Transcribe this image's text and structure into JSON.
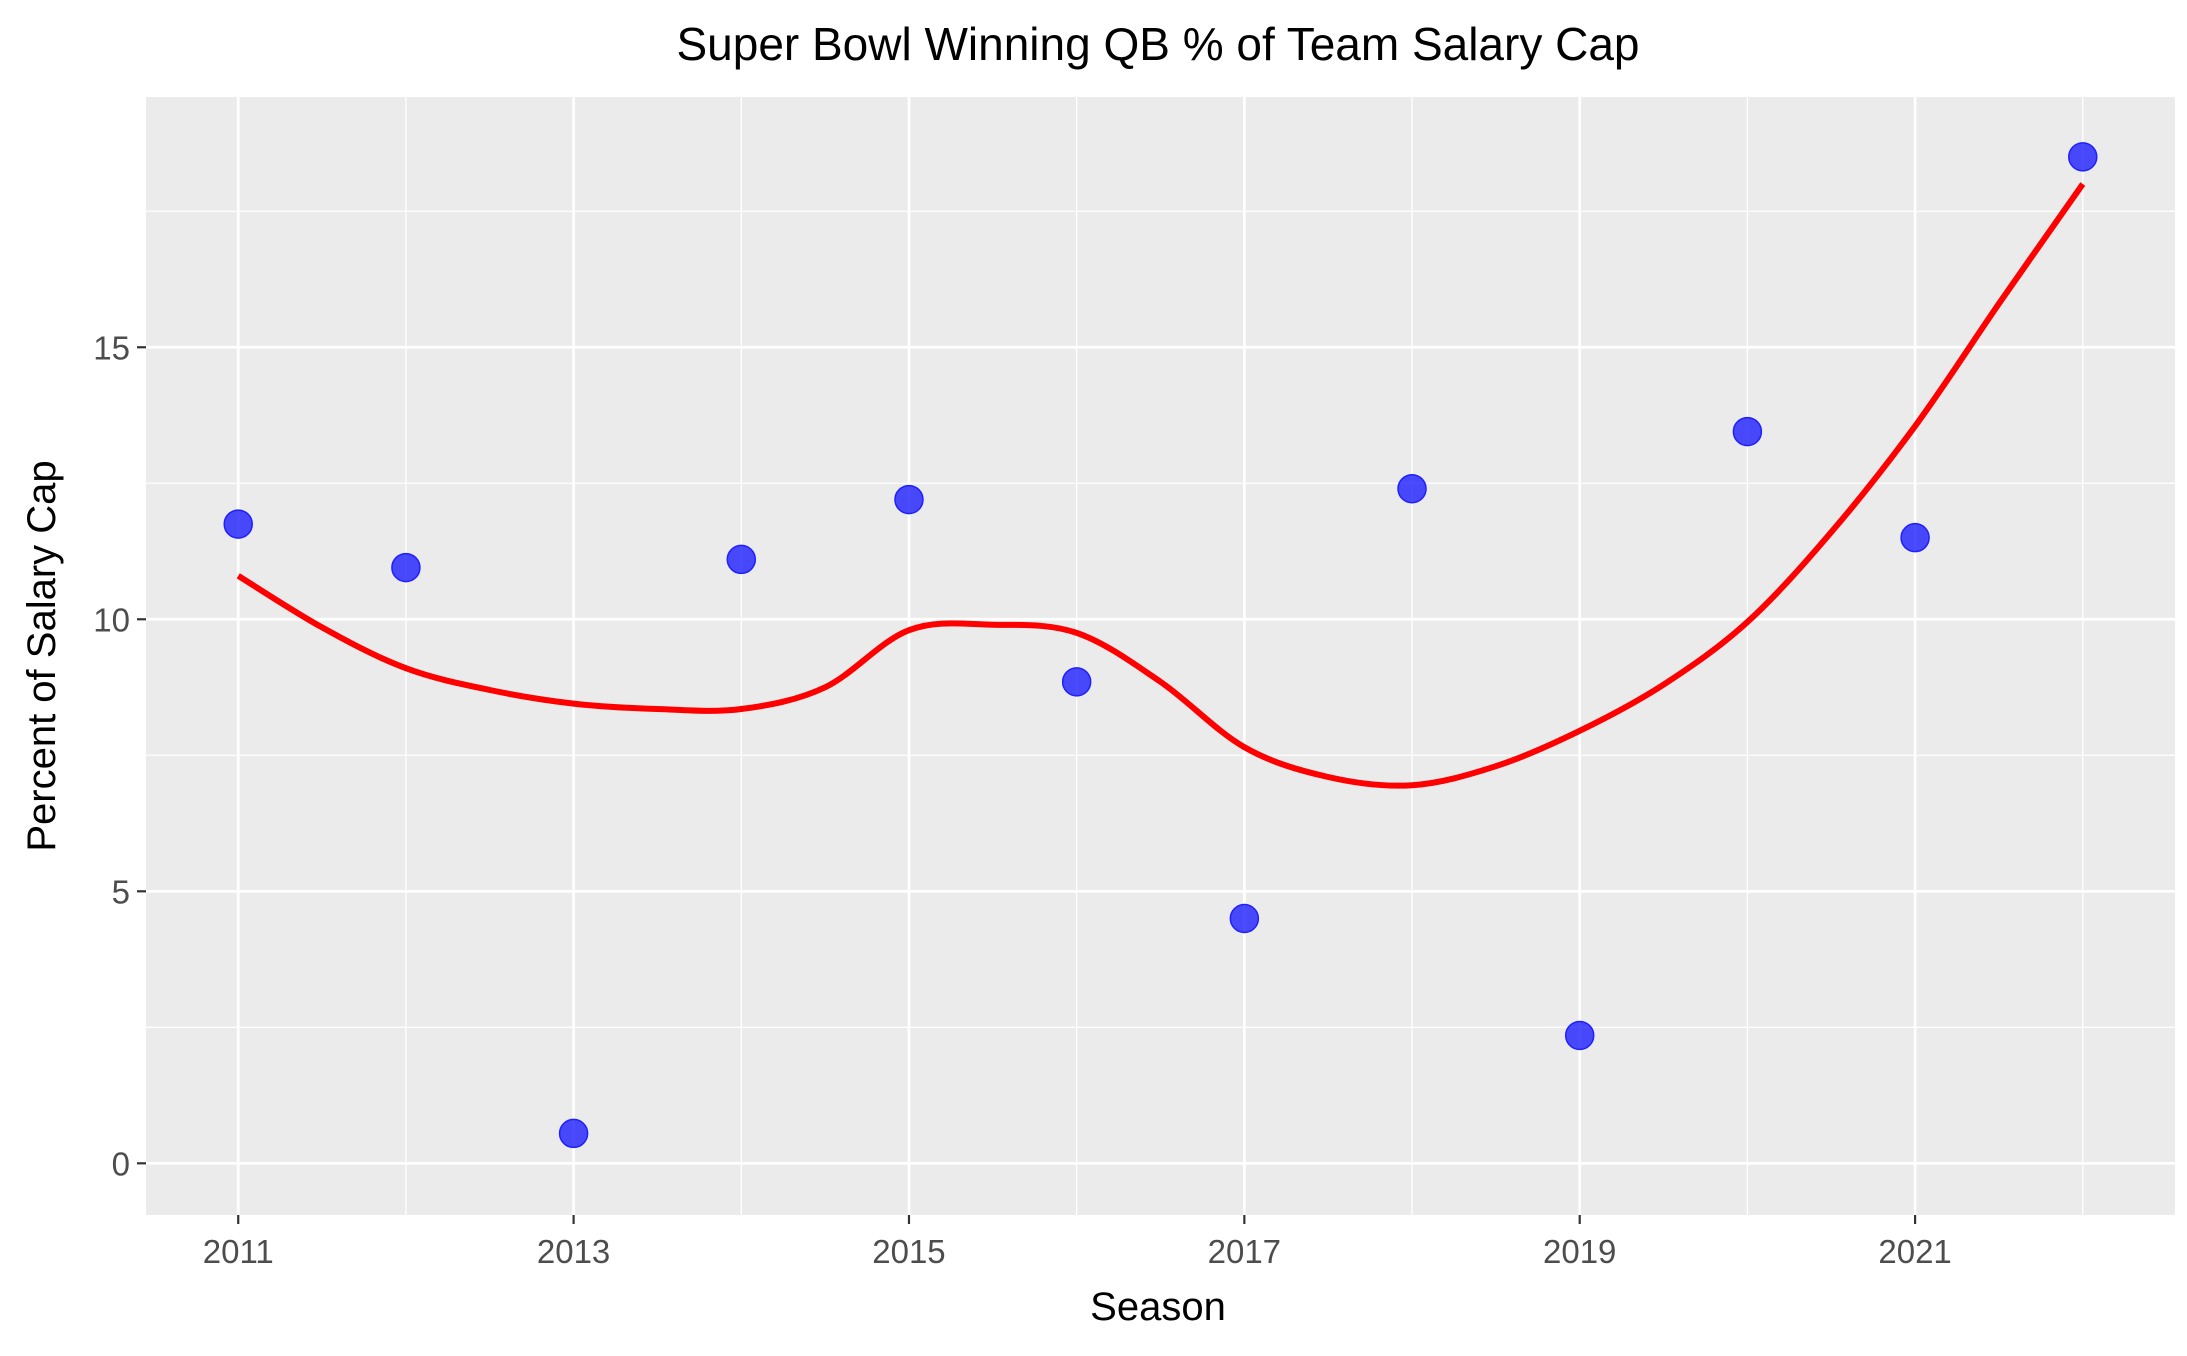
{
  "chart_data": {
    "type": "scatter",
    "title": "Super Bowl Winning QB % of Team Salary Cap",
    "xlabel": "Season",
    "ylabel": "Percent of Salary Cap",
    "xlim": [
      2010.45,
      2022.55
    ],
    "ylim": [
      -0.95,
      19.6
    ],
    "x_ticks": [
      2011,
      2013,
      2015,
      2017,
      2019,
      2021
    ],
    "x_minor_ticks": [
      2012,
      2014,
      2016,
      2018,
      2020,
      2022
    ],
    "y_ticks": [
      0,
      5,
      10,
      15
    ],
    "y_minor_ticks": [
      2.5,
      7.5,
      12.5,
      17.5
    ],
    "grid": true,
    "background": "#EBEBEB",
    "grid_color": "#FFFFFF",
    "points": {
      "color": "#1f1fff",
      "x": [
        2011,
        2012,
        2013,
        2014,
        2015,
        2016,
        2017,
        2018,
        2019,
        2020,
        2021,
        2022
      ],
      "y": [
        11.75,
        10.95,
        0.55,
        11.1,
        12.2,
        8.85,
        4.5,
        12.4,
        2.35,
        13.45,
        11.5,
        18.5
      ]
    },
    "smooth_line": {
      "color": "#FF0000",
      "x": [
        2011,
        2011.5,
        2012,
        2012.5,
        2013,
        2013.5,
        2014,
        2014.5,
        2015,
        2015.5,
        2016,
        2016.5,
        2017,
        2017.5,
        2018,
        2018.5,
        2019,
        2019.5,
        2020,
        2020.5,
        2021,
        2021.5,
        2022
      ],
      "y": [
        10.8,
        9.85,
        9.1,
        8.7,
        8.45,
        8.35,
        8.35,
        8.75,
        9.8,
        9.9,
        9.75,
        8.85,
        7.65,
        7.1,
        6.95,
        7.3,
        7.95,
        8.8,
        9.95,
        11.6,
        13.55,
        15.8,
        18.0
      ]
    }
  }
}
